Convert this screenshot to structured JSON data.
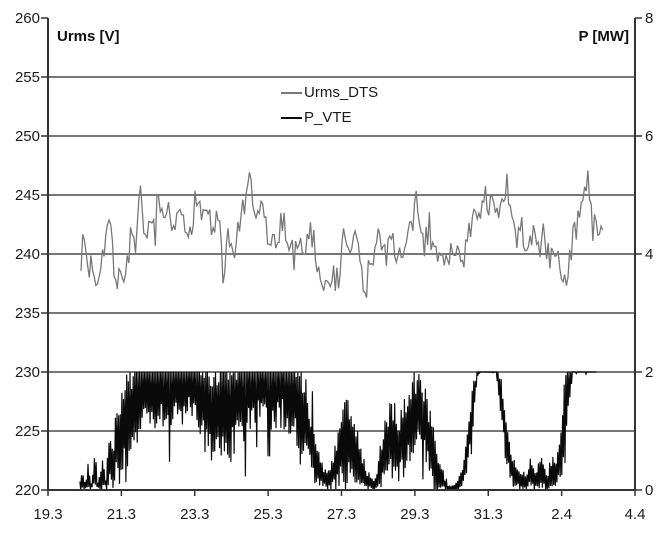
{
  "chart_data": {
    "type": "line",
    "title": "",
    "description": "Dual-axis time series: RMS voltage (Urms_DTS, gray, left axis V) and power (P_VTE, black, right axis MW) from 19.3 (March 19) to 4.4 (April 4)",
    "left_axis": {
      "label": "Urms [V]",
      "min": 220,
      "max": 260,
      "ticks": [
        220,
        225,
        230,
        235,
        240,
        245,
        250,
        255,
        260
      ]
    },
    "right_axis": {
      "label": "P [MW]",
      "min": 0,
      "max": 8,
      "ticks": [
        0,
        2,
        4,
        6,
        8
      ]
    },
    "x_axis": {
      "labels": [
        "19.3",
        "21.3",
        "23.3",
        "25.3",
        "27.3",
        "29.3",
        "31.3",
        "2.4",
        "4.4"
      ],
      "tick_positions_days": [
        0,
        2,
        4,
        6,
        8,
        10,
        12,
        14,
        16
      ],
      "range_days": [
        0,
        16
      ]
    },
    "grid": {
      "horizontal_step_V": 5,
      "vertical": false,
      "color": "#4a4a4a"
    },
    "axis_color": "#333333",
    "tick_label_color": "#1c1c1c",
    "legend": {
      "position": "top-center",
      "border": false
    },
    "seed": 7,
    "series": [
      {
        "name": "Urms_DTS",
        "axis": "left",
        "color": "#787878",
        "line_width": 1.3,
        "t_start": 0.9,
        "t_end": 15.15,
        "sample_step": 0.045,
        "noise_amp": 1.25,
        "mean_keypoints": [
          [
            0.9,
            239.8
          ],
          [
            1.0,
            241.3
          ],
          [
            1.1,
            238.3
          ],
          [
            1.2,
            239.6
          ],
          [
            1.32,
            237.6
          ],
          [
            1.45,
            239.8
          ],
          [
            1.6,
            241.8
          ],
          [
            1.72,
            243.2
          ],
          [
            1.85,
            236.9
          ],
          [
            2.0,
            238.2
          ],
          [
            2.12,
            238.8
          ],
          [
            2.25,
            241.2
          ],
          [
            2.4,
            239.9
          ],
          [
            2.5,
            245.0
          ],
          [
            2.62,
            242.8
          ],
          [
            2.7,
            241.2
          ],
          [
            2.85,
            242.4
          ],
          [
            3.0,
            244.3
          ],
          [
            3.15,
            241.9
          ],
          [
            3.3,
            243.3
          ],
          [
            3.45,
            241.2
          ],
          [
            3.6,
            243.8
          ],
          [
            3.75,
            241.5
          ],
          [
            3.9,
            242.6
          ],
          [
            4.05,
            245.2
          ],
          [
            4.2,
            243.0
          ],
          [
            4.35,
            244.2
          ],
          [
            4.5,
            241.4
          ],
          [
            4.65,
            243.4
          ],
          [
            4.78,
            237.2
          ],
          [
            4.9,
            241.0
          ],
          [
            5.05,
            240.0
          ],
          [
            5.2,
            242.2
          ],
          [
            5.35,
            243.9
          ],
          [
            5.5,
            245.9
          ],
          [
            5.65,
            242.4
          ],
          [
            5.8,
            244.6
          ],
          [
            5.95,
            242.0
          ],
          [
            6.1,
            240.8
          ],
          [
            6.25,
            240.4
          ],
          [
            6.4,
            243.4
          ],
          [
            6.55,
            241.1
          ],
          [
            6.7,
            239.6
          ],
          [
            6.85,
            241.9
          ],
          [
            7.0,
            240.2
          ],
          [
            7.15,
            242.4
          ],
          [
            7.3,
            239.9
          ],
          [
            7.45,
            238.4
          ],
          [
            7.6,
            236.6
          ],
          [
            7.75,
            238.9
          ],
          [
            7.9,
            237.1
          ],
          [
            8.05,
            241.3
          ],
          [
            8.2,
            239.9
          ],
          [
            8.35,
            241.8
          ],
          [
            8.5,
            239.7
          ],
          [
            8.62,
            235.9
          ],
          [
            8.75,
            238.8
          ],
          [
            8.9,
            240.6
          ],
          [
            9.05,
            241.6
          ],
          [
            9.2,
            239.9
          ],
          [
            9.35,
            241.9
          ],
          [
            9.5,
            240.2
          ],
          [
            9.65,
            239.4
          ],
          [
            9.8,
            241.1
          ],
          [
            9.95,
            242.9
          ],
          [
            10.1,
            243.6
          ],
          [
            10.25,
            240.7
          ],
          [
            10.4,
            242.1
          ],
          [
            10.55,
            240.1
          ],
          [
            10.7,
            239.2
          ],
          [
            10.85,
            240.6
          ],
          [
            11.0,
            239.7
          ],
          [
            11.15,
            240.9
          ],
          [
            11.3,
            239.6
          ],
          [
            11.45,
            241.2
          ],
          [
            11.6,
            242.6
          ],
          [
            11.75,
            243.9
          ],
          [
            11.9,
            244.6
          ],
          [
            12.05,
            245.4
          ],
          [
            12.2,
            242.7
          ],
          [
            12.35,
            243.2
          ],
          [
            12.5,
            245.9
          ],
          [
            12.62,
            243.0
          ],
          [
            12.75,
            241.1
          ],
          [
            12.9,
            242.2
          ],
          [
            13.05,
            240.4
          ],
          [
            13.2,
            241.9
          ],
          [
            13.35,
            240.1
          ],
          [
            13.5,
            241.4
          ],
          [
            13.65,
            239.7
          ],
          [
            13.8,
            240.9
          ],
          [
            13.95,
            238.4
          ],
          [
            14.1,
            237.9
          ],
          [
            14.25,
            240.3
          ],
          [
            14.4,
            242.4
          ],
          [
            14.55,
            244.1
          ],
          [
            14.7,
            246.3
          ],
          [
            14.82,
            243.6
          ],
          [
            14.95,
            241.5
          ],
          [
            15.05,
            242.1
          ],
          [
            15.15,
            243.4
          ]
        ]
      },
      {
        "name": "P_VTE",
        "axis": "right",
        "color": "#0a0a0a",
        "line_width": 1.2,
        "t_start": 0.87,
        "t_end": 14.96,
        "sample_step": 0.022,
        "clip": [
          0,
          2
        ],
        "envelope_keypoints": [
          [
            0.87,
            0.08,
            0.1
          ],
          [
            0.95,
            0.18,
            0.22
          ],
          [
            1.02,
            0.05,
            0.06
          ],
          [
            1.1,
            0.22,
            0.28
          ],
          [
            1.18,
            0.05,
            0.06
          ],
          [
            1.28,
            0.3,
            0.4
          ],
          [
            1.36,
            0.06,
            0.07
          ],
          [
            1.48,
            0.28,
            0.35
          ],
          [
            1.58,
            0.1,
            0.12
          ],
          [
            1.68,
            0.55,
            0.55
          ],
          [
            1.76,
            0.35,
            0.35
          ],
          [
            1.86,
            0.75,
            0.7
          ],
          [
            2.0,
            0.95,
            0.9
          ],
          [
            2.15,
            1.1,
            0.95
          ],
          [
            2.3,
            1.3,
            1.0
          ],
          [
            2.45,
            1.65,
            0.85
          ],
          [
            2.6,
            1.8,
            0.7
          ],
          [
            2.8,
            1.72,
            0.8
          ],
          [
            3.0,
            1.8,
            0.75
          ],
          [
            3.2,
            1.7,
            0.85
          ],
          [
            3.4,
            1.82,
            0.7
          ],
          [
            3.6,
            1.75,
            0.75
          ],
          [
            3.8,
            1.85,
            0.65
          ],
          [
            4.0,
            1.75,
            0.8
          ],
          [
            4.2,
            1.55,
            0.9
          ],
          [
            4.4,
            1.25,
            0.85
          ],
          [
            4.6,
            1.4,
            0.95
          ],
          [
            4.8,
            1.55,
            1.0
          ],
          [
            5.0,
            1.45,
            1.0
          ],
          [
            5.2,
            1.55,
            0.95
          ],
          [
            5.4,
            1.7,
            0.85
          ],
          [
            5.6,
            1.85,
            0.7
          ],
          [
            5.8,
            1.75,
            0.75
          ],
          [
            6.0,
            1.8,
            0.8
          ],
          [
            6.2,
            1.78,
            0.85
          ],
          [
            6.4,
            1.85,
            0.8
          ],
          [
            6.6,
            1.72,
            0.85
          ],
          [
            6.8,
            1.55,
            0.85
          ],
          [
            7.0,
            1.25,
            0.8
          ],
          [
            7.2,
            0.7,
            0.6
          ],
          [
            7.4,
            0.3,
            0.3
          ],
          [
            7.6,
            0.15,
            0.15
          ],
          [
            7.8,
            0.3,
            0.35
          ],
          [
            7.95,
            0.65,
            0.65
          ],
          [
            8.1,
            0.9,
            0.8
          ],
          [
            8.3,
            0.7,
            0.65
          ],
          [
            8.5,
            0.4,
            0.45
          ],
          [
            8.7,
            0.15,
            0.2
          ],
          [
            8.9,
            0.08,
            0.1
          ],
          [
            9.05,
            0.3,
            0.35
          ],
          [
            9.2,
            0.75,
            0.65
          ],
          [
            9.4,
            0.9,
            0.7
          ],
          [
            9.55,
            0.65,
            0.6
          ],
          [
            9.75,
            1.0,
            0.75
          ],
          [
            9.95,
            1.3,
            0.7
          ],
          [
            10.1,
            1.45,
            0.6
          ],
          [
            10.3,
            1.05,
            0.75
          ],
          [
            10.5,
            0.55,
            0.55
          ],
          [
            10.7,
            0.18,
            0.22
          ],
          [
            10.9,
            0.03,
            0.04
          ],
          [
            11.1,
            0.04,
            0.05
          ],
          [
            11.3,
            0.2,
            0.2
          ],
          [
            11.45,
            0.7,
            0.4
          ],
          [
            11.6,
            1.5,
            0.4
          ],
          [
            11.72,
            2.05,
            0.1
          ],
          [
            11.8,
            2.1,
            0.12
          ],
          [
            12.2,
            2.1,
            0.13
          ],
          [
            12.32,
            1.7,
            0.4
          ],
          [
            12.45,
            1.0,
            0.5
          ],
          [
            12.6,
            0.5,
            0.4
          ],
          [
            12.75,
            0.2,
            0.2
          ],
          [
            13.0,
            0.1,
            0.14
          ],
          [
            13.15,
            0.28,
            0.28
          ],
          [
            13.3,
            0.15,
            0.2
          ],
          [
            13.45,
            0.3,
            0.3
          ],
          [
            13.6,
            0.1,
            0.13
          ],
          [
            13.75,
            0.22,
            0.25
          ],
          [
            13.9,
            0.35,
            0.35
          ],
          [
            14.05,
            0.9,
            0.8
          ],
          [
            14.18,
            1.7,
            0.6
          ],
          [
            14.3,
            2.1,
            0.1
          ],
          [
            14.6,
            2.12,
            0.12
          ],
          [
            14.96,
            2.12,
            0.1
          ]
        ]
      }
    ]
  }
}
